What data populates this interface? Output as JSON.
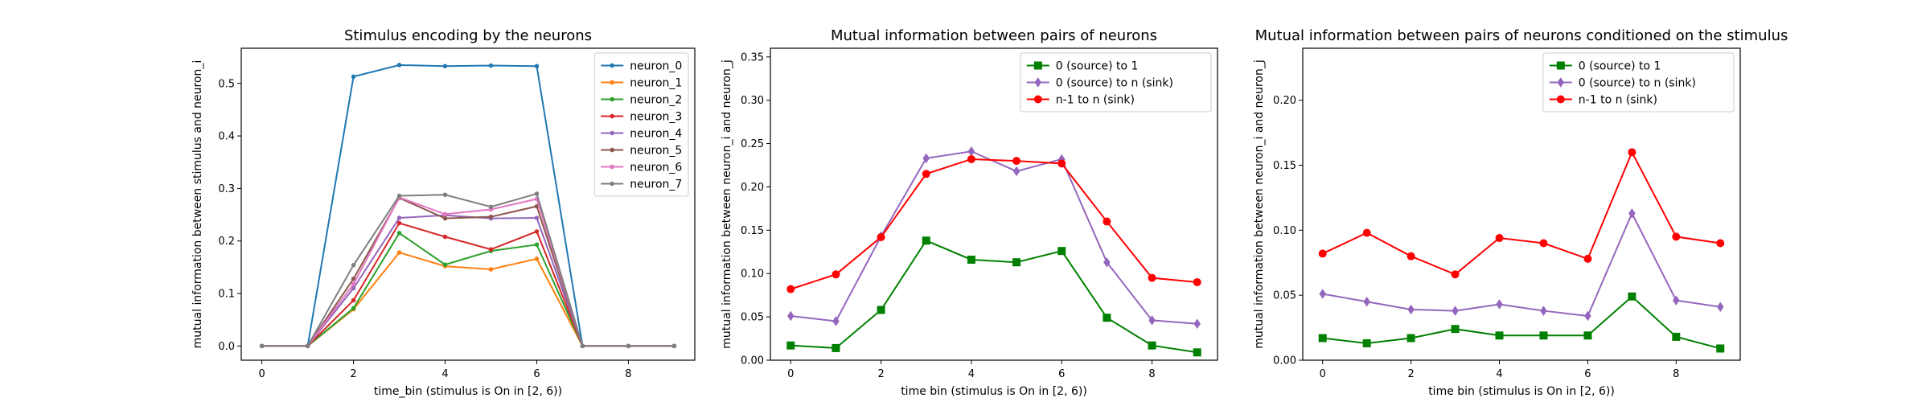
{
  "chart_data": [
    {
      "type": "line",
      "title": "Stimulus encoding by the neurons",
      "xlabel": "time_bin (stimulus is On in [2, 6))",
      "ylabel": "mutual information between stimulus and neuron_i",
      "xlim": [
        -0.45,
        9.45
      ],
      "ylim": [
        -0.027,
        0.567
      ],
      "xticks": [
        0,
        2,
        4,
        6,
        8
      ],
      "yticks": [
        0.0,
        0.1,
        0.2,
        0.3,
        0.4,
        0.5
      ],
      "legend_position": "upper right",
      "x": [
        0,
        1,
        2,
        3,
        4,
        5,
        6,
        7,
        8,
        9
      ],
      "series": [
        {
          "name": "neuron_0",
          "color": "#1f77b4",
          "marker": "dot",
          "values": [
            0,
            0,
            0.513,
            0.535,
            0.533,
            0.534,
            0.533,
            0,
            0,
            0
          ]
        },
        {
          "name": "neuron_1",
          "color": "#ff7f0e",
          "marker": "dot",
          "values": [
            0,
            0,
            0.07,
            0.178,
            0.152,
            0.146,
            0.166,
            0,
            0,
            0
          ]
        },
        {
          "name": "neuron_2",
          "color": "#2ca02c",
          "marker": "dot",
          "values": [
            0,
            0,
            0.072,
            0.215,
            0.155,
            0.181,
            0.193,
            0,
            0,
            0
          ]
        },
        {
          "name": "neuron_3",
          "color": "#d62728",
          "marker": "dot",
          "values": [
            0,
            0,
            0.087,
            0.234,
            0.208,
            0.184,
            0.218,
            0,
            0,
            0
          ]
        },
        {
          "name": "neuron_4",
          "color": "#9467bd",
          "marker": "dot",
          "values": [
            0,
            0,
            0.11,
            0.244,
            0.249,
            0.243,
            0.244,
            0,
            0,
            0
          ]
        },
        {
          "name": "neuron_5",
          "color": "#8c564b",
          "marker": "dot",
          "values": [
            0,
            0,
            0.128,
            0.282,
            0.243,
            0.246,
            0.266,
            0,
            0,
            0
          ]
        },
        {
          "name": "neuron_6",
          "color": "#e377c2",
          "marker": "dot",
          "values": [
            0,
            0,
            0.118,
            0.283,
            0.251,
            0.26,
            0.28,
            0,
            0,
            0
          ]
        },
        {
          "name": "neuron_7",
          "color": "#7f7f7f",
          "marker": "dot",
          "values": [
            0,
            0,
            0.154,
            0.286,
            0.288,
            0.265,
            0.29,
            0,
            0,
            0
          ]
        }
      ]
    },
    {
      "type": "line",
      "title": "Mutual information between pairs of neurons",
      "xlabel": "time bin (stimulus is On in [2, 6))",
      "ylabel": "mutual information between neuron_i and neuron_j",
      "xlim": [
        -0.45,
        9.45
      ],
      "ylim": [
        0,
        0.36
      ],
      "xticks": [
        0,
        2,
        4,
        6,
        8
      ],
      "yticks": [
        0.0,
        0.05,
        0.1,
        0.15,
        0.2,
        0.25,
        0.3,
        0.35
      ],
      "legend_position": "upper right",
      "x": [
        0,
        1,
        2,
        3,
        4,
        5,
        6,
        7,
        8,
        9
      ],
      "series": [
        {
          "name": "0 (source) to 1",
          "color": "#008000",
          "marker": "square",
          "values": [
            0.017,
            0.014,
            0.058,
            0.138,
            0.116,
            0.113,
            0.126,
            0.049,
            0.017,
            0.009
          ]
        },
        {
          "name": "0 (source) to n (sink)",
          "color": "#9467bd",
          "marker": "diamond",
          "values": [
            0.051,
            0.045,
            0.143,
            0.233,
            0.241,
            0.218,
            0.232,
            0.113,
            0.046,
            0.042
          ]
        },
        {
          "name": "n-1 to n (sink)",
          "color": "#ff0000",
          "marker": "circle",
          "values": [
            0.082,
            0.099,
            0.142,
            0.215,
            0.232,
            0.23,
            0.227,
            0.16,
            0.095,
            0.09
          ]
        }
      ]
    },
    {
      "type": "line",
      "title": "Mutual information between pairs of neurons conditioned on the stimulus",
      "xlabel": "time bin (stimulus is On in [2, 6))",
      "ylabel": "mutual information between neuron_i and neuron_j",
      "xlim": [
        -0.45,
        9.45
      ],
      "ylim": [
        0,
        0.24
      ],
      "xticks": [
        0,
        2,
        4,
        6,
        8
      ],
      "yticks": [
        0.0,
        0.05,
        0.1,
        0.15,
        0.2
      ],
      "legend_position": "upper right",
      "x": [
        0,
        1,
        2,
        3,
        4,
        5,
        6,
        7,
        8,
        9
      ],
      "series": [
        {
          "name": "0 (source) to 1",
          "color": "#008000",
          "marker": "square",
          "values": [
            0.017,
            0.013,
            0.017,
            0.024,
            0.019,
            0.019,
            0.019,
            0.049,
            0.018,
            0.009
          ]
        },
        {
          "name": "0 (source) to n (sink)",
          "color": "#9467bd",
          "marker": "diamond",
          "values": [
            0.051,
            0.045,
            0.039,
            0.038,
            0.043,
            0.038,
            0.034,
            0.113,
            0.046,
            0.041
          ]
        },
        {
          "name": "n-1 to n (sink)",
          "color": "#ff0000",
          "marker": "circle",
          "values": [
            0.082,
            0.098,
            0.08,
            0.066,
            0.094,
            0.09,
            0.078,
            0.16,
            0.095,
            0.09
          ]
        }
      ]
    }
  ]
}
